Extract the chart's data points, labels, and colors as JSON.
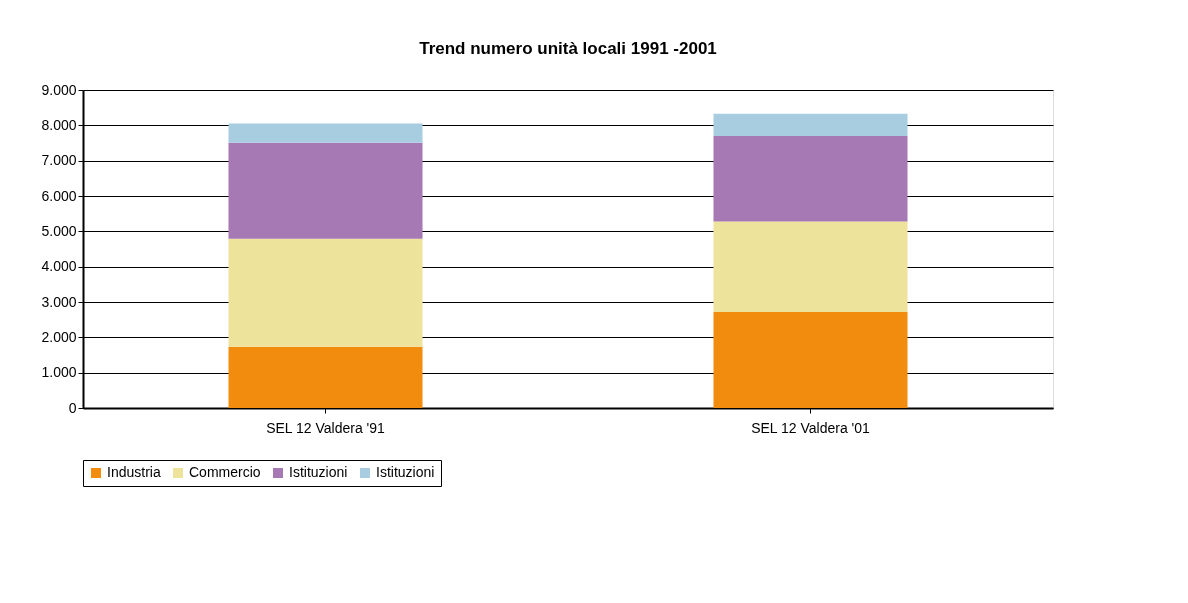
{
  "chart_data": {
    "type": "bar",
    "title": "Trend numero unità locali 1991 -2001",
    "stacked": true,
    "categories": [
      "SEL 12 Valdera '91",
      "SEL 12 Valdera '01"
    ],
    "series": [
      {
        "name": "Industria",
        "color": "#f28c0f",
        "values": [
          1730,
          2720
        ]
      },
      {
        "name": "Commercio",
        "color": "#eee39a",
        "values": [
          3060,
          2560
        ]
      },
      {
        "name": "Istituzioni",
        "color": "#a678b4",
        "values": [
          2720,
          2420
        ]
      },
      {
        "name": "Istituzioni",
        "color": "#a8cde0",
        "values": [
          540,
          630
        ]
      }
    ],
    "ylim": [
      0,
      9000
    ],
    "yticks": [
      0,
      {
        "value": 1000,
        "label": "1.000"
      },
      {
        "value": 2000,
        "label": "2.000"
      },
      {
        "value": 3000,
        "label": "3.000"
      },
      {
        "value": 4000,
        "label": "4.000"
      },
      {
        "value": 5000,
        "label": "5.000"
      },
      {
        "value": 6000,
        "label": "6.000"
      },
      {
        "value": 7000,
        "label": "7.000"
      },
      {
        "value": 8000,
        "label": "8.000"
      },
      {
        "value": 9000,
        "label": "9.000"
      }
    ],
    "grid": "y",
    "legend": "bottom"
  }
}
